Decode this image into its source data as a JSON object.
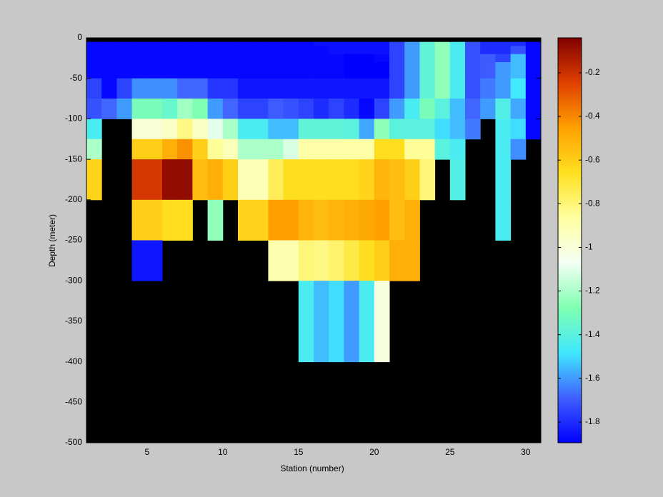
{
  "chart_data": {
    "type": "heatmap",
    "xlabel": "Station (number)",
    "ylabel": "Depth (meter)",
    "x": [
      1,
      2,
      3,
      4,
      5,
      6,
      7,
      8,
      9,
      10,
      11,
      12,
      13,
      14,
      15,
      16,
      17,
      18,
      19,
      20,
      21,
      22,
      23,
      24,
      25,
      26,
      27,
      28,
      29,
      30,
      31
    ],
    "y": [
      0,
      -5,
      -10,
      -20,
      -30,
      -50,
      -75,
      -100,
      -125,
      -150,
      -200,
      -250,
      -300,
      -400,
      -500
    ],
    "values": [
      [
        null,
        null,
        null,
        null,
        null,
        null,
        null,
        null,
        null,
        null,
        null,
        null,
        null,
        null,
        null,
        null,
        null,
        null,
        null,
        null,
        null,
        null,
        null,
        null,
        null,
        null,
        null,
        null,
        null,
        null
      ],
      [
        -1.88,
        -1.88,
        -1.88,
        -1.88,
        -1.88,
        -1.88,
        -1.88,
        -1.88,
        -1.88,
        -1.88,
        -1.88,
        -1.88,
        -1.88,
        -1.88,
        -1.88,
        -1.86,
        -1.86,
        -1.86,
        -1.86,
        -1.86,
        -1.75,
        -1.6,
        -1.38,
        -1.25,
        -1.45,
        -1.72,
        -1.8,
        -1.8,
        -1.8,
        -1.88
      ],
      [
        -1.88,
        -1.88,
        -1.88,
        -1.88,
        -1.88,
        -1.88,
        -1.88,
        -1.88,
        -1.88,
        -1.88,
        -1.88,
        -1.88,
        -1.88,
        -1.88,
        -1.88,
        -1.88,
        -1.86,
        -1.86,
        -1.86,
        -1.86,
        -1.75,
        -1.6,
        -1.38,
        -1.25,
        -1.45,
        -1.72,
        -1.8,
        -1.8,
        -1.72,
        -1.88
      ],
      [
        -1.88,
        -1.88,
        -1.88,
        -1.88,
        -1.88,
        -1.88,
        -1.88,
        -1.88,
        -1.88,
        -1.88,
        -1.88,
        -1.88,
        -1.88,
        -1.88,
        -1.88,
        -1.88,
        -1.88,
        -1.9,
        -1.9,
        -1.88,
        -1.75,
        -1.6,
        -1.38,
        -1.25,
        -1.45,
        -1.72,
        -1.7,
        -1.75,
        -1.55,
        -1.88
      ],
      [
        -1.88,
        -1.88,
        -1.88,
        -1.88,
        -1.88,
        -1.88,
        -1.88,
        -1.88,
        -1.88,
        -1.88,
        -1.88,
        -1.88,
        -1.88,
        -1.88,
        -1.88,
        -1.88,
        -1.88,
        -1.9,
        -1.9,
        -1.9,
        -1.75,
        -1.6,
        -1.38,
        -1.25,
        -1.45,
        -1.72,
        -1.7,
        -1.6,
        -1.55,
        -1.88
      ],
      [
        -1.75,
        -1.88,
        -1.75,
        -1.62,
        -1.62,
        -1.62,
        -1.68,
        -1.68,
        -1.78,
        -1.78,
        -1.85,
        -1.85,
        -1.85,
        -1.85,
        -1.85,
        -1.85,
        -1.85,
        -1.85,
        -1.85,
        -1.85,
        -1.75,
        -1.6,
        -1.38,
        -1.25,
        -1.45,
        -1.72,
        -1.65,
        -1.6,
        -1.48,
        -1.88
      ],
      [
        -1.72,
        -1.68,
        -1.6,
        -1.3,
        -1.3,
        -1.35,
        -1.22,
        -1.28,
        -1.6,
        -1.68,
        -1.75,
        -1.75,
        -1.7,
        -1.72,
        -1.75,
        -1.8,
        -1.75,
        -1.8,
        -1.88,
        -1.75,
        -1.6,
        -1.45,
        -1.3,
        -1.4,
        -1.55,
        -1.68,
        -1.6,
        -1.42,
        -1.58,
        -1.88
      ],
      [
        -1.45,
        null,
        null,
        -1.0,
        -1.0,
        -0.95,
        -0.82,
        -0.95,
        -1.1,
        -1.2,
        -1.45,
        -1.45,
        -1.55,
        -1.55,
        -1.38,
        -1.38,
        -1.38,
        -1.4,
        -1.58,
        -1.25,
        -1.4,
        -1.4,
        -1.4,
        -1.5,
        -1.55,
        -1.65,
        null,
        -1.45,
        -1.5,
        -1.88
      ],
      [
        -1.2,
        null,
        null,
        -0.6,
        -0.6,
        -0.5,
        -0.42,
        -0.6,
        -0.85,
        -0.92,
        -1.2,
        -1.2,
        -1.2,
        -1.12,
        -0.88,
        -0.88,
        -0.88,
        -0.88,
        -0.88,
        -0.65,
        -0.65,
        -0.85,
        -0.85,
        -1.4,
        -1.45,
        null,
        null,
        -1.45,
        -1.62,
        null
      ],
      [
        -0.62,
        null,
        null,
        -0.22,
        -0.22,
        -0.08,
        -0.08,
        -0.55,
        -0.5,
        -0.6,
        -0.92,
        -0.92,
        -0.75,
        -0.65,
        -0.65,
        -0.65,
        -0.65,
        -0.65,
        -0.62,
        -0.52,
        -0.55,
        -0.6,
        -0.8,
        null,
        -1.42,
        null,
        null,
        -1.45,
        null,
        null
      ],
      [
        null,
        null,
        null,
        -0.6,
        -0.6,
        -0.65,
        -0.65,
        null,
        -1.25,
        null,
        -0.62,
        -0.62,
        -0.45,
        -0.45,
        -0.52,
        -0.55,
        -0.52,
        -0.5,
        -0.48,
        -0.45,
        -0.55,
        -0.5,
        null,
        null,
        null,
        null,
        null,
        -1.45,
        null,
        null
      ],
      [
        null,
        null,
        null,
        -1.85,
        -1.85,
        null,
        null,
        null,
        null,
        null,
        null,
        null,
        -0.9,
        -0.9,
        -0.8,
        -0.82,
        -0.78,
        -0.72,
        -0.65,
        -0.6,
        -0.5,
        -0.5,
        null,
        null,
        null,
        null,
        null,
        null,
        null,
        null
      ],
      [
        null,
        null,
        null,
        null,
        null,
        null,
        null,
        null,
        null,
        null,
        null,
        null,
        null,
        null,
        -1.45,
        -1.55,
        -1.5,
        -1.6,
        -1.45,
        -1.02,
        null,
        null,
        null,
        null,
        null,
        null,
        null,
        null,
        null,
        null
      ],
      [
        null,
        null,
        null,
        null,
        null,
        null,
        null,
        null,
        null,
        null,
        null,
        null,
        null,
        null,
        null,
        null,
        null,
        null,
        null,
        null,
        null,
        null,
        null,
        null,
        null,
        null,
        null,
        null,
        null,
        null
      ]
    ],
    "xlim": [
      1,
      31
    ],
    "ylim": [
      -500,
      0
    ],
    "xticks": [
      5,
      10,
      15,
      20,
      25,
      30
    ],
    "yticks": [
      0,
      -50,
      -100,
      -150,
      -200,
      -250,
      -300,
      -350,
      -400,
      -450,
      -500
    ],
    "clim": [
      -1.895,
      -0.04
    ],
    "cticks": [
      -1.8,
      -1.6,
      -1.4,
      -1.2,
      -1,
      -0.8,
      -0.6,
      -0.4,
      -0.2
    ],
    "colorscale": [
      "#0000ff",
      "#4060ff",
      "#40e8ff",
      "#80ffb0",
      "#f4fff4",
      "#ffffa0",
      "#ffe020",
      "#ffa000",
      "#e04000",
      "#800000"
    ],
    "nan_color": "#000000"
  }
}
